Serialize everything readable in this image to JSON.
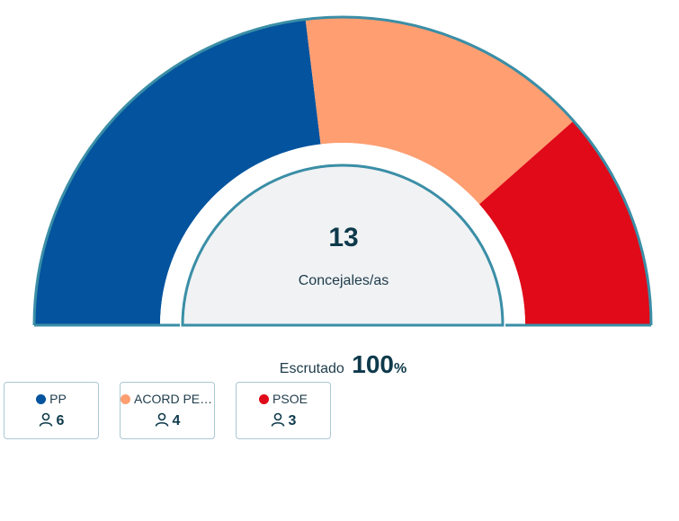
{
  "chart_data": {
    "type": "hemicycle",
    "total_seats": 13,
    "center_label": "Concejales/as",
    "series": [
      {
        "name": "PP",
        "seats": 6,
        "color": "#03539e"
      },
      {
        "name": "ACORD PER ...",
        "seats": 4,
        "color": "#fe9e71"
      },
      {
        "name": "PSOE",
        "seats": 3,
        "color": "#e00a18"
      }
    ]
  },
  "scrutiny": {
    "label": "Escrutado",
    "value": "100",
    "unit": "%"
  },
  "colors": {
    "outline": "#3a8ea6",
    "inner_fill": "#f0f2f4"
  },
  "icons": {
    "seats": "user-icon"
  }
}
